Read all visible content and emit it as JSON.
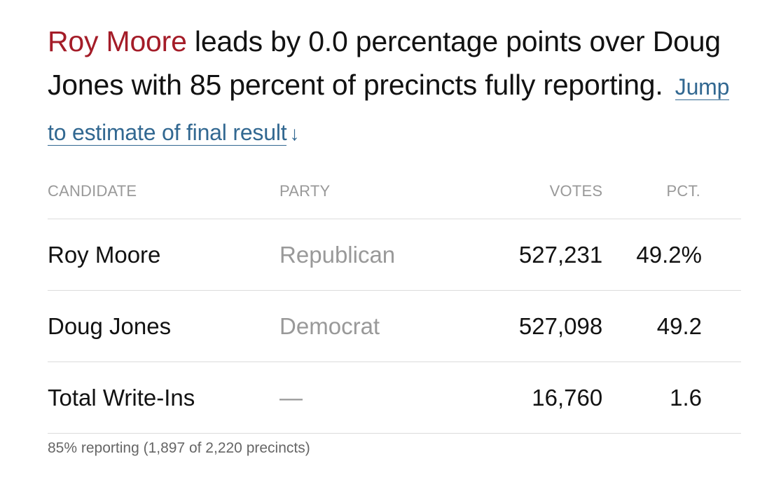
{
  "headline": {
    "leader_name": "Roy Moore",
    "text": " leads by 0.0 percentage points over Doug Jones with 85 percent of precincts fully reporting. ",
    "jump_link": "Jump to estimate of final result",
    "jump_arrow": "↓"
  },
  "table": {
    "headers": {
      "candidate": "CANDIDATE",
      "party": "PARTY",
      "votes": "VOTES",
      "pct": "PCT."
    },
    "rows": [
      {
        "candidate": "Roy Moore",
        "party": "Republican",
        "votes": "527,231",
        "pct": "49.2%"
      },
      {
        "candidate": "Doug Jones",
        "party": "Democrat",
        "votes": "527,098",
        "pct": "49.2"
      },
      {
        "candidate": "Total Write-Ins",
        "party": "—",
        "votes": "16,760",
        "pct": "1.6"
      }
    ]
  },
  "footnote": "85% reporting (1,897 of 2,220 precincts)",
  "colors": {
    "leader": "#a41c28",
    "link": "#326891",
    "muted": "#999999"
  }
}
